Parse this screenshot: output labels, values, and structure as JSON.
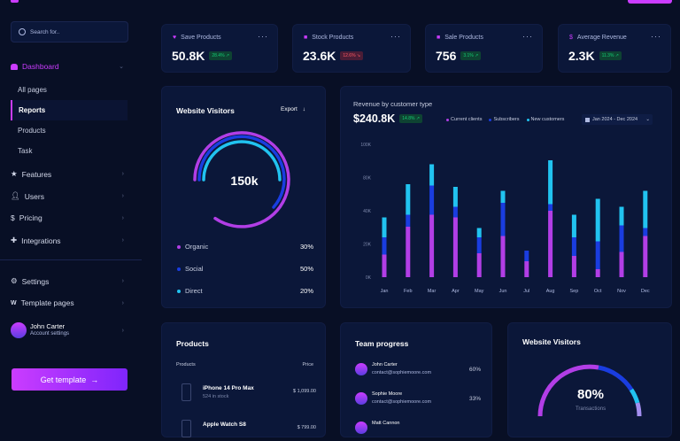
{
  "colors": {
    "accent": "#cb3cff",
    "purple": "#b23ee6",
    "blue": "#1a3de0",
    "cyan": "#21c3f0",
    "bg": "#080f25",
    "card": "#0b1739",
    "green": "#14ca74",
    "red": "#ff5a65"
  },
  "sidebar": {
    "search_placeholder": "Search for..",
    "dashboard": "Dashboard",
    "sub_items": [
      "All pages",
      "Reports",
      "Products",
      "Task"
    ],
    "active_sub": "Reports",
    "items": [
      {
        "label": "Features",
        "icon": "star-icon"
      },
      {
        "label": "Users",
        "icon": "user-icon"
      },
      {
        "label": "Pricing",
        "icon": "dollar-icon"
      },
      {
        "label": "Integrations",
        "icon": "puzzle-icon"
      }
    ],
    "bottom_items": [
      {
        "label": "Settings",
        "icon": "gear-icon"
      },
      {
        "label": "Template pages",
        "icon": "w-icon"
      }
    ],
    "user": {
      "name": "John Carter",
      "subtitle": "Account settings"
    },
    "cta": "Get template"
  },
  "stats": [
    {
      "title": "Save Products",
      "value": "50.8K",
      "change": "28.4%",
      "trend": "up",
      "icon": "heart-icon"
    },
    {
      "title": "Stock Products",
      "value": "23.6K",
      "change": "12.6%",
      "trend": "down",
      "icon": "bag-icon"
    },
    {
      "title": "Sale Products",
      "value": "756",
      "change": "3.1%",
      "trend": "up",
      "icon": "cart-icon"
    },
    {
      "title": "Average Revenue",
      "value": "2.3K",
      "change": "11.3%",
      "trend": "up",
      "icon": "dollar-icon"
    }
  ],
  "visitors": {
    "title": "Website Visitors",
    "export": "Export",
    "total": "150k",
    "legend": [
      {
        "label": "Organic",
        "value": "30%",
        "color": "#b23ee6"
      },
      {
        "label": "Social",
        "value": "50%",
        "color": "#1a3de0"
      },
      {
        "label": "Direct",
        "value": "20%",
        "color": "#21c3f0"
      }
    ]
  },
  "revenue": {
    "title": "Revenue by customer type",
    "total": "$240.8K",
    "change": "14.8%",
    "date_range": "Jan 2024 - Dec 2024"
  },
  "chart_data": {
    "type": "bar",
    "stacked": true,
    "title": "Revenue by customer type",
    "categories": [
      "Jan",
      "Feb",
      "Mar",
      "Apr",
      "May",
      "Jun",
      "Jul",
      "Aug",
      "Sep",
      "Oct",
      "Nov",
      "Dec"
    ],
    "y_tick_labels": [
      "0K",
      "20K",
      "40K",
      "80K",
      "100K"
    ],
    "ylim": [
      0,
      100
    ],
    "grid": false,
    "legend": "top",
    "series": [
      {
        "name": "Current clients",
        "color": "#b23ee6",
        "values": [
          17,
          38,
          47,
          45,
          18,
          31,
          12,
          50,
          16,
          6,
          19,
          31
        ]
      },
      {
        "name": "Subscribers",
        "color": "#1a3de0",
        "values": [
          13,
          9,
          22,
          8,
          12,
          25,
          8,
          5,
          14,
          21,
          20,
          6
        ]
      },
      {
        "name": "New customers",
        "color": "#21c3f0",
        "values": [
          15,
          23,
          16,
          15,
          7,
          9,
          0,
          33,
          17,
          32,
          14,
          28
        ]
      }
    ]
  },
  "products": {
    "title": "Products",
    "col_product": "Products",
    "col_price": "Price",
    "rows": [
      {
        "name": "iPhone 14 Pro Max",
        "stock": "524 in stock",
        "price": "$ 1,099.00"
      },
      {
        "name": "Apple Watch S8",
        "stock": "",
        "price": "$ 799.00"
      }
    ]
  },
  "team": {
    "title": "Team progress",
    "members": [
      {
        "name": "John Carter",
        "email": "contact@sophiemoore.com",
        "value": "60%"
      },
      {
        "name": "Sophie Moore",
        "email": "contact@sophiemoore.com",
        "value": "33%"
      },
      {
        "name": "Matt Cannon",
        "email": "",
        "value": ""
      }
    ]
  },
  "visitors2": {
    "title": "Website Visitors",
    "value": "80%",
    "label": "Transactions"
  }
}
